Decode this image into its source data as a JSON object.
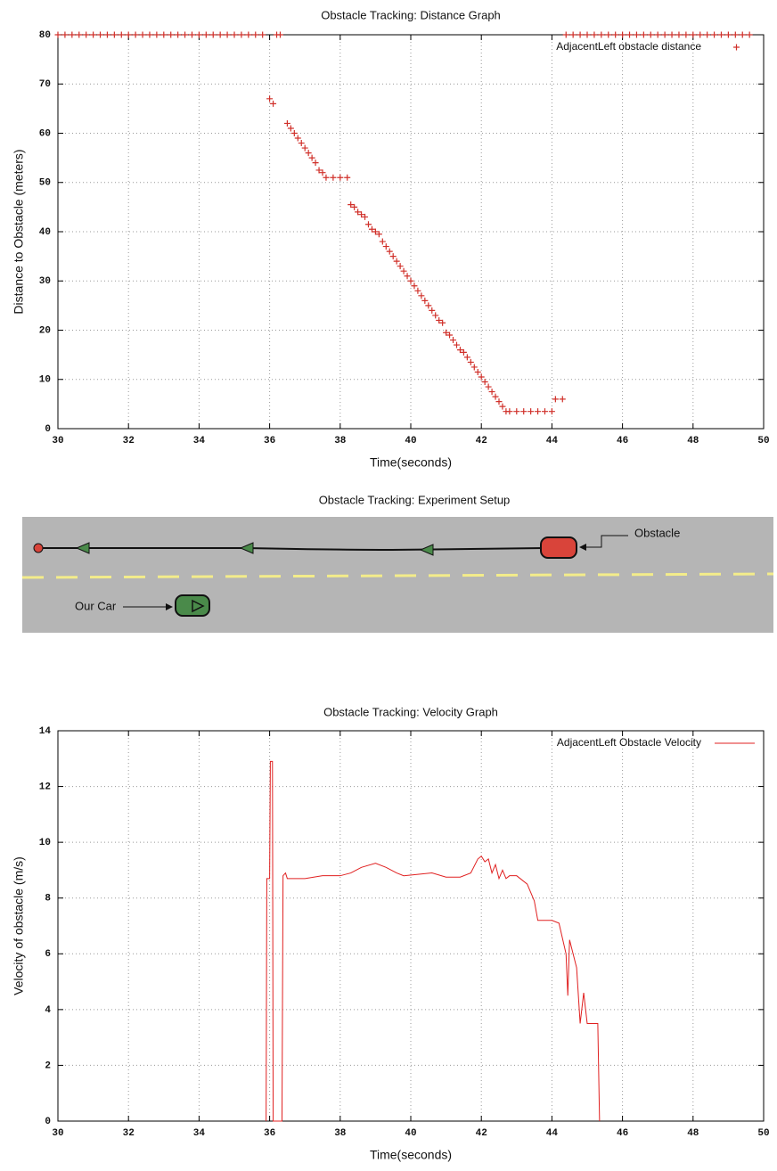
{
  "chart_data": [
    {
      "type": "scatter",
      "title": "Obstacle Tracking: Distance Graph",
      "xlabel": "Time(seconds)",
      "ylabel": "Distance to Obstacle (meters)",
      "x": [
        30.0,
        30.2,
        30.4,
        30.6,
        30.8,
        31.0,
        31.2,
        31.4,
        31.6,
        31.8,
        32.0,
        32.2,
        32.4,
        32.6,
        32.8,
        33.0,
        33.2,
        33.4,
        33.6,
        33.8,
        34.0,
        34.2,
        34.4,
        34.6,
        34.8,
        35.0,
        35.2,
        35.4,
        35.6,
        35.8,
        36.0,
        36.1,
        36.2,
        36.3,
        36.5,
        36.6,
        36.7,
        36.8,
        36.9,
        37.0,
        37.1,
        37.2,
        37.3,
        37.4,
        37.5,
        37.6,
        37.8,
        38.0,
        38.2,
        38.3,
        38.4,
        38.5,
        38.6,
        38.7,
        38.8,
        38.9,
        39.0,
        39.1,
        39.2,
        39.3,
        39.4,
        39.5,
        39.6,
        39.7,
        39.8,
        39.9,
        40.0,
        40.1,
        40.2,
        40.3,
        40.4,
        40.5,
        40.6,
        40.7,
        40.8,
        40.9,
        41.0,
        41.1,
        41.2,
        41.3,
        41.4,
        41.5,
        41.6,
        41.7,
        41.8,
        41.9,
        42.0,
        42.1,
        42.2,
        42.3,
        42.4,
        42.5,
        42.6,
        42.7,
        42.8,
        43.0,
        43.2,
        43.4,
        43.6,
        43.8,
        44.0,
        44.1,
        44.3,
        44.4,
        44.6,
        44.8,
        45.0,
        45.2,
        45.4,
        45.6,
        45.8,
        46.0,
        46.2,
        46.4,
        46.6,
        46.8,
        47.0,
        47.2,
        47.4,
        47.6,
        47.8,
        48.0,
        48.2,
        48.4,
        48.6,
        48.8,
        49.0,
        49.2,
        49.4,
        49.6
      ],
      "series": [
        {
          "name": "AdjacentLeft obstacle distance",
          "color": "#d0302a",
          "values": [
            80,
            80,
            80,
            80,
            80,
            80,
            80,
            80,
            80,
            80,
            80,
            80,
            80,
            80,
            80,
            80,
            80,
            80,
            80,
            80,
            80,
            80,
            80,
            80,
            80,
            80,
            80,
            80,
            80,
            80,
            67,
            66,
            80,
            80,
            62,
            61,
            60,
            59,
            58,
            57,
            56,
            55,
            54,
            52.5,
            52,
            51,
            51,
            51,
            51,
            45.5,
            45,
            44,
            43.5,
            43,
            41.5,
            40.5,
            40,
            39.5,
            38,
            37,
            36,
            35,
            34,
            33,
            32,
            31,
            30,
            29,
            28,
            27,
            26,
            25,
            24,
            23,
            22,
            21.5,
            19.5,
            19,
            18,
            17,
            16,
            15.5,
            14.5,
            13.5,
            12.5,
            11.5,
            10.5,
            9.5,
            8.5,
            7.5,
            6.5,
            5.5,
            4.5,
            3.5,
            3.5,
            3.5,
            3.5,
            3.5,
            3.5,
            3.5,
            3.5,
            6,
            6,
            80,
            80,
            80,
            80,
            80,
            80,
            80,
            80,
            80,
            80,
            80,
            80,
            80,
            80,
            80,
            80,
            80,
            80,
            80,
            80,
            80,
            80,
            80,
            80,
            80,
            80,
            80
          ]
        }
      ],
      "xlim": [
        30,
        50
      ],
      "ylim": [
        0,
        80
      ],
      "xticks": [
        30,
        32,
        34,
        36,
        38,
        40,
        42,
        44,
        46,
        48,
        50
      ],
      "yticks": [
        0,
        10,
        20,
        30,
        40,
        50,
        60,
        70,
        80
      ],
      "grid": true,
      "legend": "upper right"
    },
    {
      "type": "line",
      "title": "Obstacle Tracking: Velocity Graph",
      "xlabel": "Time(seconds)",
      "ylabel": "Velocity of obstacle (m/s)",
      "x": [
        35.9,
        35.92,
        36.0,
        36.02,
        36.08,
        36.1,
        36.35,
        36.38,
        36.45,
        36.5,
        37.0,
        37.5,
        38.0,
        38.3,
        38.6,
        39.0,
        39.3,
        39.6,
        39.8,
        40.2,
        40.6,
        41.0,
        41.4,
        41.7,
        41.9,
        42.0,
        42.1,
        42.2,
        42.3,
        42.4,
        42.5,
        42.6,
        42.7,
        42.8,
        43.0,
        43.3,
        43.5,
        43.6,
        44.0,
        44.2,
        44.4,
        44.45,
        44.5,
        44.7,
        44.8,
        44.9,
        45.0,
        45.3,
        45.35
      ],
      "series": [
        {
          "name": "AdjacentLeft Obstacle Velocity",
          "color": "#e02020",
          "values": [
            0,
            8.7,
            8.7,
            12.9,
            12.9,
            0,
            0,
            8.8,
            8.9,
            8.7,
            8.7,
            8.8,
            8.8,
            8.9,
            9.1,
            9.25,
            9.1,
            8.9,
            8.8,
            8.85,
            8.9,
            8.75,
            8.75,
            8.9,
            9.4,
            9.5,
            9.3,
            9.4,
            8.9,
            9.2,
            8.7,
            9.0,
            8.7,
            8.8,
            8.8,
            8.5,
            7.9,
            7.2,
            7.2,
            7.1,
            6.0,
            4.5,
            6.5,
            5.5,
            3.5,
            4.6,
            3.5,
            3.5,
            0
          ]
        }
      ],
      "xlim": [
        30,
        50
      ],
      "ylim": [
        0,
        14
      ],
      "xticks": [
        30,
        32,
        34,
        36,
        38,
        40,
        42,
        44,
        46,
        48,
        50
      ],
      "yticks": [
        0,
        2,
        4,
        6,
        8,
        10,
        12,
        14
      ],
      "grid": true,
      "legend": "upper right"
    }
  ],
  "diagram": {
    "title": "Obstacle Tracking: Experiment Setup",
    "obstacle_label": "Obstacle",
    "car_label": "Our Car"
  }
}
